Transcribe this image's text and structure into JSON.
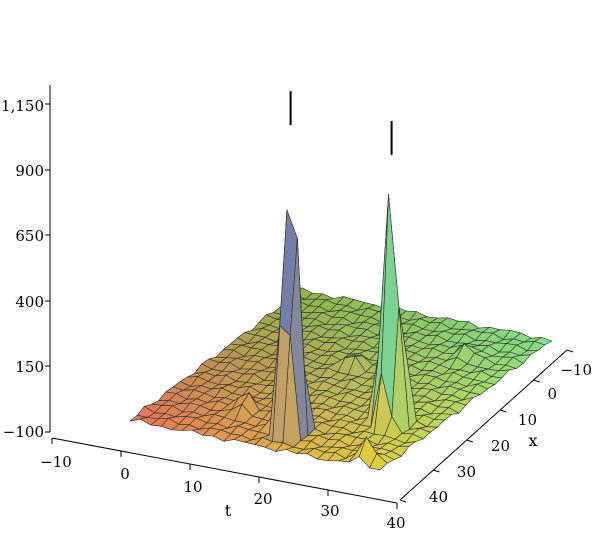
{
  "chart_data": {
    "type": "surface3d",
    "title": "",
    "axes": {
      "z": {
        "ticks": [
          "1,150",
          "900",
          "650",
          "400",
          "150",
          "−100"
        ],
        "values": [
          1150,
          900,
          650,
          400,
          150,
          -100
        ],
        "range": [
          -100,
          1150
        ]
      },
      "t": {
        "label": "t",
        "ticks": [
          "−10",
          "0",
          "10",
          "20",
          "30",
          "40"
        ],
        "values": [
          -10,
          0,
          10,
          20,
          30,
          40
        ],
        "range": [
          -10,
          40
        ]
      },
      "x": {
        "label": "x",
        "ticks": [
          "−10",
          "0",
          "10",
          "20",
          "30",
          "40"
        ],
        "values": [
          -10,
          0,
          10,
          20,
          30,
          40
        ],
        "range": [
          -10,
          40
        ]
      }
    },
    "surface": {
      "baseline_z": 150,
      "peaks": [
        {
          "t": 18,
          "x": -4,
          "z": 1350
        },
        {
          "t": 32,
          "x": 5,
          "z": 1200
        }
      ],
      "small_bumps": [
        {
          "t": 6,
          "x": 0,
          "z": 230
        },
        {
          "t": 36,
          "x": -8,
          "z": 240
        },
        {
          "t": 14,
          "x": 20,
          "z": 215
        },
        {
          "t": 30,
          "x": 30,
          "z": 205
        }
      ]
    },
    "colors": {
      "low_corner": "#e8735a",
      "mid": "#8fb84a",
      "high_corner": "#7fe08a",
      "near_corner": "#e0d23c",
      "peak_left": "#4f6fc9",
      "peak_right": "#66d6a0",
      "mesh": "#2b2b2b"
    },
    "grid": false
  }
}
